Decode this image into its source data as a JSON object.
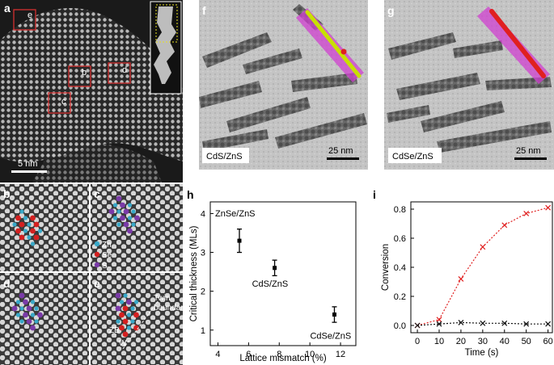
{
  "panels": {
    "a": {
      "label": "a",
      "scalebar": "5 nm",
      "boxes": [
        "e",
        "b",
        "d",
        "c"
      ]
    },
    "b": {
      "label": "b"
    },
    "c": {
      "label": "c",
      "legend": [
        "Zn",
        "Se",
        "S"
      ]
    },
    "d": {
      "label": "d"
    },
    "e": {
      "label": "e",
      "twin_label_1": "Twin",
      "twin_label_2": "boundary",
      "zb": "ZB",
      "w": "W"
    },
    "f": {
      "label": "f",
      "sample": "CdS/ZnS",
      "scalebar": "25 nm"
    },
    "g": {
      "label": "g",
      "sample": "CdSe/ZnS",
      "scalebar": "25 nm"
    },
    "h": {
      "label": "h"
    },
    "i": {
      "label": "i"
    }
  },
  "colors": {
    "zn": "#38a8c8",
    "se": "#d42020",
    "s": "#7a3aa8",
    "box": "#d43030",
    "rod_f": "#c8e000",
    "rod_g": "#e02020",
    "shell": "#d040d0"
  },
  "chart_data": [
    {
      "type": "scatter",
      "panel": "h",
      "xlabel": "Lattice mismatch (%)",
      "ylabel": "Critical thickness (MLs)",
      "xlim": [
        3.5,
        13
      ],
      "ylim": [
        0.6,
        4.3
      ],
      "xticks": [
        4,
        6,
        8,
        10,
        12
      ],
      "yticks": [
        1,
        2,
        3,
        4
      ],
      "points": [
        {
          "label": "ZnSe/ZnS",
          "x": 5.4,
          "y": 3.3,
          "err": 0.3
        },
        {
          "label": "CdS/ZnS",
          "x": 7.7,
          "y": 2.6,
          "err": 0.2
        },
        {
          "label": "CdSe/ZnS",
          "x": 11.6,
          "y": 1.4,
          "err": 0.2
        }
      ]
    },
    {
      "type": "line",
      "panel": "i",
      "xlabel": "Time (s)",
      "ylabel": "Conversion",
      "xlim": [
        -3,
        62
      ],
      "ylim": [
        -0.05,
        0.85
      ],
      "xticks": [
        0,
        10,
        20,
        30,
        40,
        50,
        60
      ],
      "yticks": [
        0.0,
        0.2,
        0.4,
        0.6,
        0.8
      ],
      "yticklabels": [
        "0.0",
        "0.2",
        "0.4",
        "0.6",
        "0.8"
      ],
      "series": [
        {
          "color": "#e02020",
          "x": [
            0,
            10,
            20,
            30,
            40,
            50,
            60
          ],
          "values": [
            0.0,
            0.04,
            0.32,
            0.54,
            0.69,
            0.77,
            0.81
          ]
        },
        {
          "color": "#111111",
          "x": [
            0,
            10,
            20,
            30,
            40,
            50,
            60
          ],
          "values": [
            0.0,
            0.01,
            0.02,
            0.015,
            0.015,
            0.01,
            0.01
          ]
        }
      ]
    }
  ]
}
